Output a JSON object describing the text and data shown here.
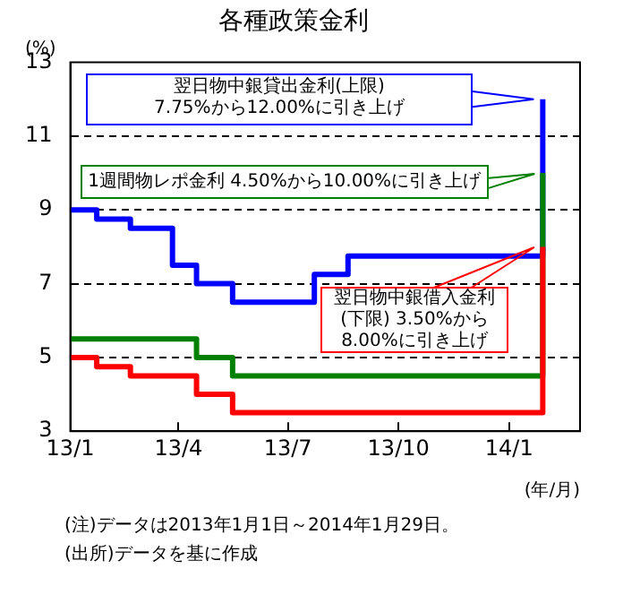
{
  "chart_data": {
    "type": "step",
    "title": "各種政策金利",
    "ylabel": "(%)",
    "xlabel": "(年/月)",
    "x": [
      "2013-01-01",
      "2013-01-23",
      "2013-02-20",
      "2013-03-27",
      "2013-04-16",
      "2013-05-16",
      "2013-07-23",
      "2013-08-20",
      "2014-01-28",
      "2014-01-29"
    ],
    "series": [
      {
        "color": "#0000ff",
        "values": [
          9,
          8.75,
          8.5,
          7.5,
          7,
          6.5,
          7.25,
          7.75,
          7.75,
          12
        ]
      },
      {
        "color": "#008000",
        "values": [
          5.5,
          5.5,
          5.5,
          5.5,
          5,
          4.5,
          4.5,
          4.5,
          4.5,
          10
        ]
      },
      {
        "color": "#ff0000",
        "values": [
          5,
          4.75,
          4.5,
          4.5,
          4,
          3.5,
          3.5,
          3.5,
          3.5,
          8
        ]
      }
    ],
    "xlim": [
      "2013-01-01",
      "2014-03-01"
    ],
    "xticks": [
      {
        "value": "2013-01-01",
        "label": "13/1"
      },
      {
        "value": "2013-04-01",
        "label": "13/4"
      },
      {
        "value": "2013-07-01",
        "label": "13/7"
      },
      {
        "value": "2013-10-01",
        "label": "13/10"
      },
      {
        "value": "2014-01-01",
        "label": "14/1"
      }
    ],
    "ylim": [
      3,
      13
    ],
    "yticks": [
      3,
      5,
      7,
      9,
      11,
      13
    ],
    "grid": "y",
    "legend": false,
    "line_style": "solid",
    "marker": "none",
    "annotations": [
      "翌日物中銀貸出金利(上限)\n7.75%から12.00%に引き上げ",
      "1週間物レポ金利 4.50%から10.00%に引き上げ",
      "翌日物中銀借入金利\n(下限) 3.50%から\n8.00%に引き上げ",
      "(注)データは2013年1月1日～2014年1月29日。",
      "(出所)データを基に作成"
    ]
  }
}
